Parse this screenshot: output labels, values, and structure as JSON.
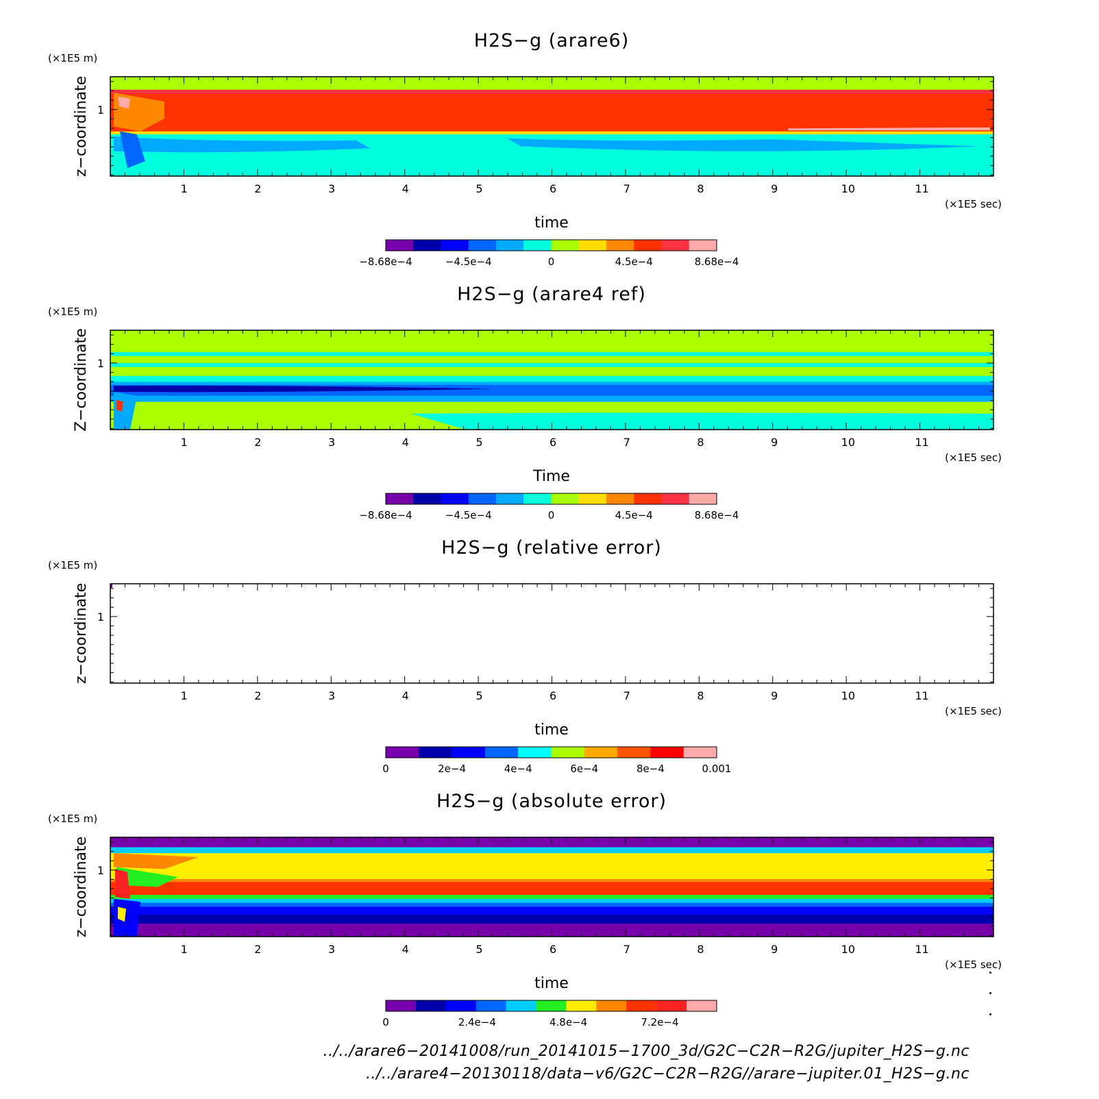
{
  "chart_data": [
    {
      "type": "heatmap",
      "title": "H2S−g (arare6)",
      "xlabel": "time",
      "ylabel": "z−coordinate",
      "x_unit": "(×1E5 sec)",
      "y_unit": "(×1E5 m)",
      "xlim": [
        0,
        12
      ],
      "xticks": [
        "1",
        "2",
        "3",
        "4",
        "5",
        "6",
        "7",
        "8",
        "9",
        "10",
        "11"
      ],
      "yticks": [
        "1"
      ],
      "colorbar": {
        "levels": 12,
        "colors": [
          "#7700aa",
          "#0000aa",
          "#0000ff",
          "#0066ff",
          "#00aaff",
          "#00ffdd",
          "#aaff00",
          "#ffdd00",
          "#ff8800",
          "#ff3300",
          "#ff3344",
          "#ffaaaa"
        ],
        "labels": [
          "−8.68e−4",
          "−4.5e−4",
          "0",
          "4.5e−4",
          "8.68e−4"
        ]
      }
    },
    {
      "type": "heatmap",
      "title": "H2S−g (arare4 ref)",
      "xlabel": "Time",
      "ylabel": "Z−coordinate",
      "x_unit": "(×1E5 sec)",
      "y_unit": "(×1E5 m)",
      "xlim": [
        0,
        12
      ],
      "xticks": [
        "1",
        "2",
        "3",
        "4",
        "5",
        "6",
        "7",
        "8",
        "9",
        "10",
        "11"
      ],
      "yticks": [
        "1"
      ],
      "colorbar": {
        "levels": 12,
        "colors": [
          "#7700aa",
          "#0000aa",
          "#0000ff",
          "#0066ff",
          "#00aaff",
          "#00ffdd",
          "#aaff00",
          "#ffdd00",
          "#ff8800",
          "#ff3300",
          "#ff3344",
          "#ffaaaa"
        ],
        "labels": [
          "−8.68e−4",
          "−4.5e−4",
          "0",
          "4.5e−4",
          "8.68e−4"
        ]
      }
    },
    {
      "type": "heatmap",
      "title": "H2S−g (relative error)",
      "xlabel": "time",
      "ylabel": "z−coordinate",
      "x_unit": "(×1E5 sec)",
      "y_unit": "(×1E5 m)",
      "xlim": [
        0,
        12
      ],
      "xticks": [
        "1",
        "2",
        "3",
        "4",
        "5",
        "6",
        "7",
        "8",
        "9",
        "10",
        "11"
      ],
      "yticks": [
        "1"
      ],
      "colorbar": {
        "levels": 10,
        "colors": [
          "#7700aa",
          "#0000aa",
          "#0000ff",
          "#0066ff",
          "#00ffff",
          "#aaff00",
          "#ffaa00",
          "#ff5500",
          "#ff0000",
          "#ffaaaa"
        ],
        "labels": [
          "0",
          "2e−4",
          "4e−4",
          "6e−4",
          "8e−4",
          "0.001"
        ]
      }
    },
    {
      "type": "heatmap",
      "title": "H2S−g (absolute error)",
      "xlabel": "time",
      "ylabel": "z−coordinate",
      "x_unit": "(×1E5 sec)",
      "y_unit": "(×1E5 m)",
      "xlim": [
        0,
        12
      ],
      "xticks": [
        "1",
        "2",
        "3",
        "4",
        "5",
        "6",
        "7",
        "8",
        "9",
        "10",
        "11"
      ],
      "yticks": [
        "1"
      ],
      "colorbar": {
        "levels": 11,
        "colors": [
          "#7700aa",
          "#0000aa",
          "#0000ff",
          "#0066ff",
          "#00ccff",
          "#22ee22",
          "#ffee00",
          "#ff8800",
          "#ff3300",
          "#ff2222",
          "#ffaaaa"
        ],
        "labels": [
          "0",
          "2.4e−4",
          "4.8e−4",
          "7.2e−4"
        ]
      }
    }
  ],
  "footer": {
    "line1": "../../arare6−20141008/run_20141015−1700_3d/G2C−C2R−R2G/jupiter_H2S−g.nc",
    "line2": "../../arare4−20130118/data−v6/G2C−C2R−R2G//arare−jupiter.01_H2S−g.nc"
  }
}
